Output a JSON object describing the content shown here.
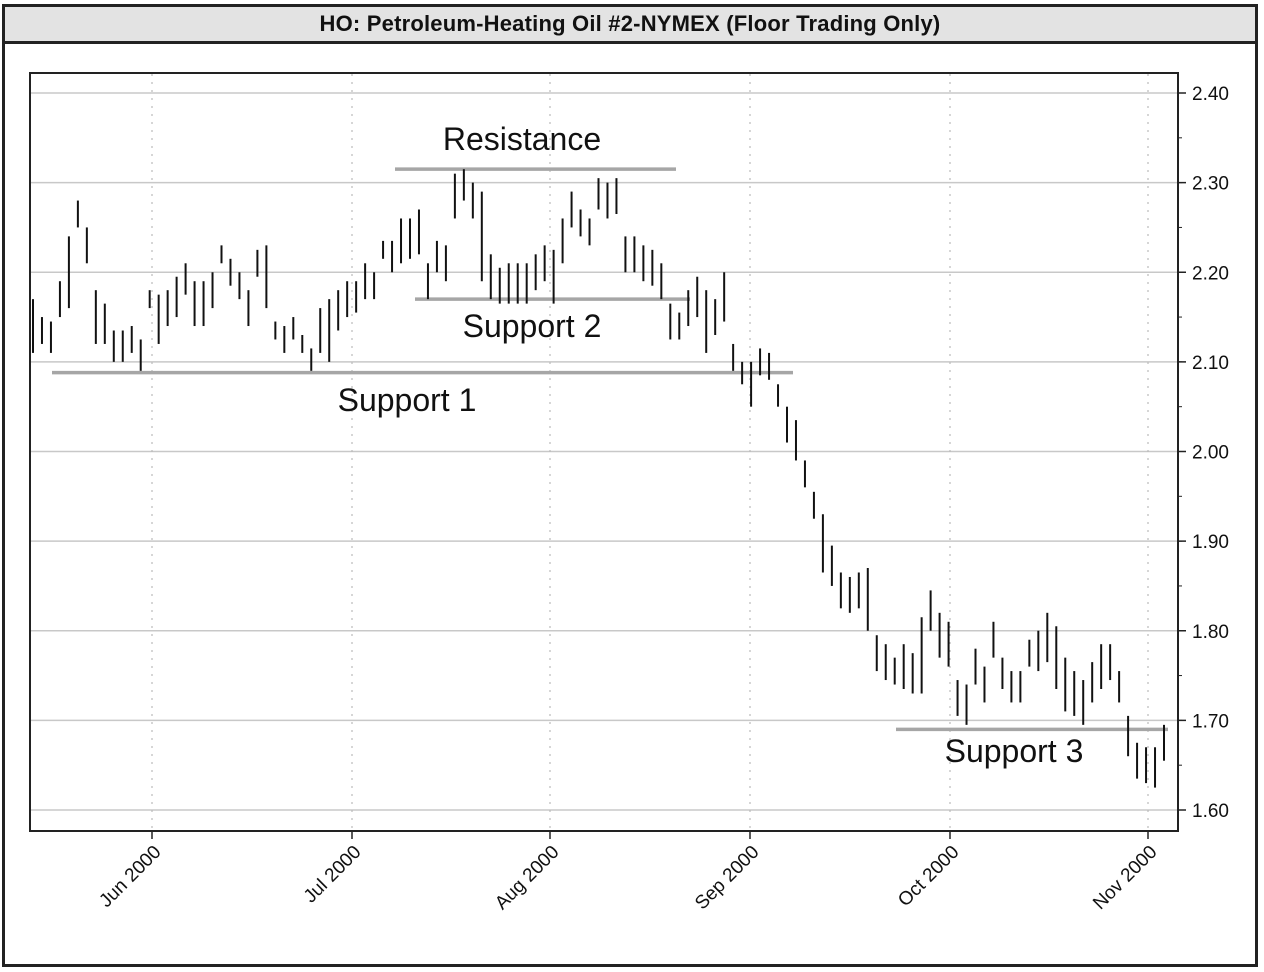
{
  "chart_data": {
    "type": "bar",
    "title": "HO: Petroleum-Heating Oil #2-NYMEX (Floor Trading Only)",
    "y_axis": {
      "ylim": [
        1.57,
        2.44
      ],
      "ticks": [
        2.4,
        2.3,
        2.2,
        2.1,
        2.0,
        1.9,
        1.8,
        1.7,
        1.6
      ],
      "tick_labels": [
        "2.40",
        "2.30",
        "2.20",
        "2.10",
        "2.00",
        "1.90",
        "1.80",
        "1.70",
        "1.60"
      ],
      "grid": true,
      "side": "right"
    },
    "x_axis": {
      "month_labels": [
        "Jun 2000",
        "Jul 2000",
        "Aug 2000",
        "Sep 2000",
        "Oct 2000",
        "Nov 2000"
      ],
      "label_rotation_deg": -45
    },
    "series": [
      {
        "bars": [
          [
            2.17,
            2.11
          ],
          [
            2.15,
            2.12
          ],
          [
            2.145,
            2.11
          ],
          [
            2.19,
            2.15
          ],
          [
            2.24,
            2.16
          ],
          [
            2.28,
            2.25
          ],
          [
            2.25,
            2.21
          ],
          [
            2.18,
            2.12
          ],
          [
            2.165,
            2.12
          ],
          [
            2.135,
            2.1
          ],
          [
            2.135,
            2.1
          ],
          [
            2.14,
            2.11
          ],
          [
            2.125,
            2.09
          ],
          [
            2.18,
            2.16
          ],
          [
            2.175,
            2.12
          ],
          [
            2.18,
            2.14
          ],
          [
            2.195,
            2.15
          ],
          [
            2.21,
            2.175
          ],
          [
            2.19,
            2.14
          ],
          [
            2.19,
            2.14
          ],
          [
            2.2,
            2.16
          ],
          [
            2.23,
            2.21
          ],
          [
            2.215,
            2.185
          ],
          [
            2.2,
            2.17
          ],
          [
            2.18,
            2.14
          ],
          [
            2.225,
            2.195
          ],
          [
            2.23,
            2.16
          ],
          [
            2.145,
            2.125
          ],
          [
            2.14,
            2.11
          ],
          [
            2.15,
            2.125
          ],
          [
            2.13,
            2.11
          ],
          [
            2.115,
            2.09
          ],
          [
            2.16,
            2.11
          ],
          [
            2.17,
            2.1
          ],
          [
            2.18,
            2.135
          ],
          [
            2.19,
            2.15
          ],
          [
            2.19,
            2.155
          ],
          [
            2.21,
            2.17
          ],
          [
            2.2,
            2.17
          ],
          [
            2.235,
            2.215
          ],
          [
            2.235,
            2.2
          ],
          [
            2.26,
            2.21
          ],
          [
            2.26,
            2.215
          ],
          [
            2.27,
            2.22
          ],
          [
            2.21,
            2.17
          ],
          [
            2.235,
            2.2
          ],
          [
            2.23,
            2.19
          ],
          [
            2.31,
            2.26
          ],
          [
            2.315,
            2.28
          ],
          [
            2.3,
            2.26
          ],
          [
            2.29,
            2.19
          ],
          [
            2.22,
            2.17
          ],
          [
            2.205,
            2.165
          ],
          [
            2.21,
            2.165
          ],
          [
            2.21,
            2.165
          ],
          [
            2.21,
            2.165
          ],
          [
            2.22,
            2.18
          ],
          [
            2.23,
            2.19
          ],
          [
            2.225,
            2.165
          ],
          [
            2.26,
            2.21
          ],
          [
            2.29,
            2.25
          ],
          [
            2.27,
            2.24
          ],
          [
            2.26,
            2.23
          ],
          [
            2.305,
            2.27
          ],
          [
            2.3,
            2.26
          ],
          [
            2.305,
            2.265
          ],
          [
            2.24,
            2.2
          ],
          [
            2.24,
            2.2
          ],
          [
            2.23,
            2.19
          ],
          [
            2.225,
            2.185
          ],
          [
            2.21,
            2.17
          ],
          [
            2.165,
            2.125
          ],
          [
            2.155,
            2.125
          ],
          [
            2.18,
            2.14
          ],
          [
            2.195,
            2.15
          ],
          [
            2.18,
            2.11
          ],
          [
            2.17,
            2.13
          ],
          [
            2.2,
            2.145
          ],
          [
            2.12,
            2.09
          ],
          [
            2.1,
            2.075
          ],
          [
            2.1,
            2.05
          ],
          [
            2.115,
            2.085
          ],
          [
            2.11,
            2.08
          ],
          [
            2.075,
            2.05
          ],
          [
            2.05,
            2.01
          ],
          [
            2.035,
            1.99
          ],
          [
            1.99,
            1.96
          ],
          [
            1.955,
            1.925
          ],
          [
            1.93,
            1.865
          ],
          [
            1.895,
            1.85
          ],
          [
            1.865,
            1.825
          ],
          [
            1.86,
            1.82
          ],
          [
            1.865,
            1.825
          ],
          [
            1.87,
            1.8
          ],
          [
            1.795,
            1.755
          ],
          [
            1.785,
            1.745
          ],
          [
            1.77,
            1.74
          ],
          [
            1.785,
            1.735
          ],
          [
            1.775,
            1.73
          ],
          [
            1.815,
            1.73
          ],
          [
            1.845,
            1.8
          ],
          [
            1.82,
            1.77
          ],
          [
            1.81,
            1.76
          ],
          [
            1.745,
            1.705
          ],
          [
            1.74,
            1.695
          ],
          [
            1.78,
            1.74
          ],
          [
            1.76,
            1.72
          ],
          [
            1.81,
            1.77
          ],
          [
            1.77,
            1.735
          ],
          [
            1.755,
            1.72
          ],
          [
            1.755,
            1.72
          ],
          [
            1.79,
            1.76
          ],
          [
            1.8,
            1.755
          ],
          [
            1.82,
            1.765
          ],
          [
            1.805,
            1.735
          ],
          [
            1.77,
            1.71
          ],
          [
            1.755,
            1.705
          ],
          [
            1.745,
            1.695
          ],
          [
            1.765,
            1.72
          ],
          [
            1.785,
            1.735
          ],
          [
            1.785,
            1.745
          ],
          [
            1.755,
            1.72
          ],
          [
            1.705,
            1.66
          ],
          [
            1.675,
            1.635
          ],
          [
            1.67,
            1.63
          ],
          [
            1.67,
            1.625
          ],
          [
            1.695,
            1.655
          ]
        ]
      }
    ],
    "annotations": [
      {
        "label": "Resistance",
        "price": 2.315
      },
      {
        "label": "Support 2",
        "price": 2.17
      },
      {
        "label": "Support 1",
        "price": 2.088
      },
      {
        "label": "Support 3",
        "price": 1.69
      }
    ]
  }
}
